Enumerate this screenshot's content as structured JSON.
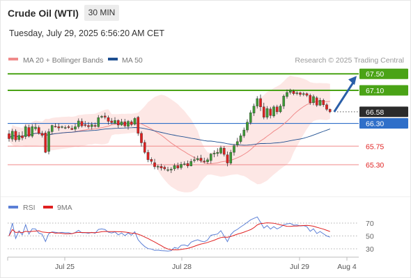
{
  "header": {
    "title": "Crude Oil (WTI)",
    "timeframe": "30 MIN",
    "datetime": "Tuesday, July 29, 2025 6:56:20 AM CET"
  },
  "legend": {
    "ma20": "MA 20 + Bollinger Bands",
    "ma50": "MA 50",
    "credit": "Research © 2025 Trading Central",
    "ma20_color": "#f08a8a",
    "ma50_color": "#1e4f91"
  },
  "rsi_legend": {
    "rsi": "RSI",
    "ma9": "9MA",
    "rsi_color": "#5b7fd6",
    "ma9_color": "#e02020"
  },
  "chart_data": {
    "type": "candlestick",
    "x_ticks": [
      "Jul 25",
      "Jul 28",
      "Jul 29",
      "Aug 4"
    ],
    "price_levels": [
      {
        "value": 67.5,
        "label": "67.50",
        "kind": "resistance",
        "color": "#4aa316"
      },
      {
        "value": 67.1,
        "label": "67.10",
        "kind": "resistance",
        "color": "#4aa316"
      },
      {
        "value": 66.58,
        "label": "66.58",
        "kind": "last-price",
        "color": "#2b2b2b"
      },
      {
        "value": 66.3,
        "label": "66.30",
        "kind": "pivot",
        "color": "#2f6fc9"
      },
      {
        "value": 65.75,
        "label": "65.75",
        "kind": "support",
        "color": "#e02020"
      },
      {
        "value": 65.3,
        "label": "65.30",
        "kind": "support",
        "color": "#e02020"
      }
    ],
    "arrow_target": 67.5,
    "rsi_levels": [
      "70",
      "50",
      "30"
    ],
    "candles": [
      {
        "o": 66.05,
        "c": 65.93,
        "h": 66.14,
        "l": 65.86
      },
      {
        "o": 65.92,
        "c": 66.11,
        "h": 66.17,
        "l": 65.86
      },
      {
        "o": 66.11,
        "c": 65.9,
        "h": 66.16,
        "l": 65.85
      },
      {
        "o": 65.91,
        "c": 66.01,
        "h": 66.09,
        "l": 65.86
      },
      {
        "o": 66.0,
        "c": 65.95,
        "h": 66.11,
        "l": 65.89
      },
      {
        "o": 65.98,
        "c": 66.22,
        "h": 66.27,
        "l": 65.92
      },
      {
        "o": 66.2,
        "c": 65.99,
        "h": 66.27,
        "l": 65.96
      },
      {
        "o": 65.99,
        "c": 66.22,
        "h": 66.28,
        "l": 65.95
      },
      {
        "o": 66.17,
        "c": 66.21,
        "h": 66.3,
        "l": 66.12
      },
      {
        "o": 66.2,
        "c": 66.06,
        "h": 66.25,
        "l": 66.03
      },
      {
        "o": 66.06,
        "c": 66.01,
        "h": 66.12,
        "l": 65.96
      },
      {
        "o": 66.07,
        "c": 65.6,
        "h": 66.12,
        "l": 65.58
      },
      {
        "o": 65.62,
        "c": 66.1,
        "h": 66.17,
        "l": 65.55
      },
      {
        "o": 66.1,
        "c": 66.25,
        "h": 66.27,
        "l": 66.03
      },
      {
        "o": 66.23,
        "c": 66.22,
        "h": 66.3,
        "l": 66.2
      },
      {
        "o": 66.22,
        "c": 66.19,
        "h": 66.3,
        "l": 66.12
      },
      {
        "o": 66.21,
        "c": 66.22,
        "h": 66.25,
        "l": 66.18
      },
      {
        "o": 66.2,
        "c": 66.2,
        "h": 66.25,
        "l": 66.16
      },
      {
        "o": 66.22,
        "c": 66.2,
        "h": 66.26,
        "l": 66.17
      },
      {
        "o": 66.18,
        "c": 66.15,
        "h": 66.25,
        "l": 66.14
      },
      {
        "o": 66.16,
        "c": 66.22,
        "h": 66.29,
        "l": 66.11
      },
      {
        "o": 66.22,
        "c": 66.36,
        "h": 66.42,
        "l": 66.17
      },
      {
        "o": 66.35,
        "c": 66.24,
        "h": 66.42,
        "l": 66.2
      },
      {
        "o": 66.27,
        "c": 66.25,
        "h": 66.36,
        "l": 66.21
      },
      {
        "o": 66.25,
        "c": 66.22,
        "h": 66.33,
        "l": 66.17
      },
      {
        "o": 66.22,
        "c": 66.27,
        "h": 66.33,
        "l": 66.15
      },
      {
        "o": 66.25,
        "c": 66.23,
        "h": 66.32,
        "l": 66.2
      },
      {
        "o": 66.22,
        "c": 66.44,
        "h": 66.5,
        "l": 66.2
      },
      {
        "o": 66.45,
        "c": 66.47,
        "h": 66.5,
        "l": 66.42
      },
      {
        "o": 66.48,
        "c": 66.45,
        "h": 66.56,
        "l": 66.4
      },
      {
        "o": 66.44,
        "c": 66.35,
        "h": 66.49,
        "l": 66.27
      },
      {
        "o": 66.36,
        "c": 66.32,
        "h": 66.43,
        "l": 66.28
      },
      {
        "o": 66.3,
        "c": 66.37,
        "h": 66.45,
        "l": 66.28
      },
      {
        "o": 66.37,
        "c": 66.26,
        "h": 66.4,
        "l": 66.19
      },
      {
        "o": 66.26,
        "c": 66.34,
        "h": 66.41,
        "l": 66.24
      },
      {
        "o": 66.34,
        "c": 66.24,
        "h": 66.41,
        "l": 66.2
      },
      {
        "o": 66.23,
        "c": 66.35,
        "h": 66.38,
        "l": 66.15
      },
      {
        "o": 66.34,
        "c": 66.27,
        "h": 66.38,
        "l": 66.23
      },
      {
        "o": 66.28,
        "c": 66.42,
        "h": 66.45,
        "l": 66.25
      },
      {
        "o": 66.45,
        "c": 66.06,
        "h": 66.48,
        "l": 66.0
      },
      {
        "o": 66.06,
        "c": 65.83,
        "h": 66.11,
        "l": 65.74
      },
      {
        "o": 65.84,
        "c": 65.6,
        "h": 65.9,
        "l": 65.56
      },
      {
        "o": 65.6,
        "c": 65.42,
        "h": 65.66,
        "l": 65.36
      },
      {
        "o": 65.43,
        "c": 65.38,
        "h": 65.48,
        "l": 65.32
      },
      {
        "o": 65.35,
        "c": 65.25,
        "h": 65.44,
        "l": 65.19
      },
      {
        "o": 65.25,
        "c": 65.26,
        "h": 65.3,
        "l": 65.18
      },
      {
        "o": 65.26,
        "c": 65.22,
        "h": 65.32,
        "l": 65.16
      },
      {
        "o": 65.24,
        "c": 65.2,
        "h": 65.28,
        "l": 65.16
      },
      {
        "o": 65.18,
        "c": 65.18,
        "h": 65.25,
        "l": 65.13
      },
      {
        "o": 65.17,
        "c": 65.19,
        "h": 65.24,
        "l": 65.1
      },
      {
        "o": 65.2,
        "c": 65.28,
        "h": 65.33,
        "l": 65.15
      },
      {
        "o": 65.28,
        "c": 65.22,
        "h": 65.35,
        "l": 65.18
      },
      {
        "o": 65.23,
        "c": 65.31,
        "h": 65.37,
        "l": 65.18
      },
      {
        "o": 65.31,
        "c": 65.32,
        "h": 65.38,
        "l": 65.28
      },
      {
        "o": 65.33,
        "c": 65.27,
        "h": 65.4,
        "l": 65.22
      },
      {
        "o": 65.27,
        "c": 65.38,
        "h": 65.44,
        "l": 65.26
      },
      {
        "o": 65.4,
        "c": 65.42,
        "h": 65.5,
        "l": 65.35
      },
      {
        "o": 65.42,
        "c": 65.45,
        "h": 65.52,
        "l": 65.38
      },
      {
        "o": 65.46,
        "c": 65.4,
        "h": 65.54,
        "l": 65.35
      },
      {
        "o": 65.39,
        "c": 65.37,
        "h": 65.47,
        "l": 65.33
      },
      {
        "o": 65.37,
        "c": 65.42,
        "h": 65.47,
        "l": 65.32
      },
      {
        "o": 65.4,
        "c": 65.56,
        "h": 65.58,
        "l": 65.33
      },
      {
        "o": 65.56,
        "c": 65.58,
        "h": 65.65,
        "l": 65.48
      },
      {
        "o": 65.57,
        "c": 65.6,
        "h": 65.7,
        "l": 65.5
      },
      {
        "o": 65.58,
        "c": 65.71,
        "h": 65.76,
        "l": 65.55
      },
      {
        "o": 65.7,
        "c": 65.55,
        "h": 65.75,
        "l": 65.5
      },
      {
        "o": 65.54,
        "c": 65.34,
        "h": 65.62,
        "l": 65.26
      },
      {
        "o": 65.34,
        "c": 65.6,
        "h": 65.66,
        "l": 65.3
      },
      {
        "o": 65.6,
        "c": 65.76,
        "h": 65.8,
        "l": 65.52
      },
      {
        "o": 65.78,
        "c": 65.86,
        "h": 65.95,
        "l": 65.73
      },
      {
        "o": 65.86,
        "c": 66.0,
        "h": 66.06,
        "l": 65.81
      },
      {
        "o": 66.0,
        "c": 66.14,
        "h": 66.2,
        "l": 65.95
      },
      {
        "o": 66.14,
        "c": 66.33,
        "h": 66.4,
        "l": 66.08
      },
      {
        "o": 66.32,
        "c": 66.56,
        "h": 66.62,
        "l": 66.27
      },
      {
        "o": 66.55,
        "c": 66.72,
        "h": 66.78,
        "l": 66.48
      },
      {
        "o": 66.72,
        "c": 66.9,
        "h": 66.96,
        "l": 66.66
      },
      {
        "o": 66.9,
        "c": 66.7,
        "h": 67.0,
        "l": 66.6
      },
      {
        "o": 66.7,
        "c": 66.45,
        "h": 66.8,
        "l": 66.4
      },
      {
        "o": 66.45,
        "c": 66.66,
        "h": 66.72,
        "l": 66.4
      },
      {
        "o": 66.65,
        "c": 66.49,
        "h": 66.7,
        "l": 66.42
      },
      {
        "o": 66.48,
        "c": 66.7,
        "h": 66.74,
        "l": 66.44
      },
      {
        "o": 66.7,
        "c": 66.58,
        "h": 66.75,
        "l": 66.52
      },
      {
        "o": 66.58,
        "c": 66.72,
        "h": 66.77,
        "l": 66.55
      },
      {
        "o": 66.72,
        "c": 66.96,
        "h": 67.0,
        "l": 66.65
      },
      {
        "o": 66.95,
        "c": 67.05,
        "h": 67.12,
        "l": 66.9
      },
      {
        "o": 67.05,
        "c": 67.1,
        "h": 67.14,
        "l": 67.0
      },
      {
        "o": 67.08,
        "c": 67.02,
        "h": 67.12,
        "l": 66.98
      },
      {
        "o": 67.02,
        "c": 67.04,
        "h": 67.08,
        "l": 66.98
      },
      {
        "o": 67.04,
        "c": 67.0,
        "h": 67.07,
        "l": 66.95
      },
      {
        "o": 67.0,
        "c": 67.02,
        "h": 67.06,
        "l": 66.96
      },
      {
        "o": 67.02,
        "c": 66.98,
        "h": 67.05,
        "l": 66.94
      },
      {
        "o": 66.98,
        "c": 66.8,
        "h": 67.02,
        "l": 66.75
      },
      {
        "o": 66.8,
        "c": 66.95,
        "h": 67.0,
        "l": 66.74
      },
      {
        "o": 66.92,
        "c": 66.74,
        "h": 66.96,
        "l": 66.7
      },
      {
        "o": 66.74,
        "c": 66.86,
        "h": 66.92,
        "l": 66.72
      },
      {
        "o": 66.86,
        "c": 66.75,
        "h": 66.9,
        "l": 66.7
      },
      {
        "o": 66.75,
        "c": 66.64,
        "h": 66.79,
        "l": 66.6
      },
      {
        "o": 66.64,
        "c": 66.58,
        "h": 66.66,
        "l": 66.55
      }
    ]
  }
}
